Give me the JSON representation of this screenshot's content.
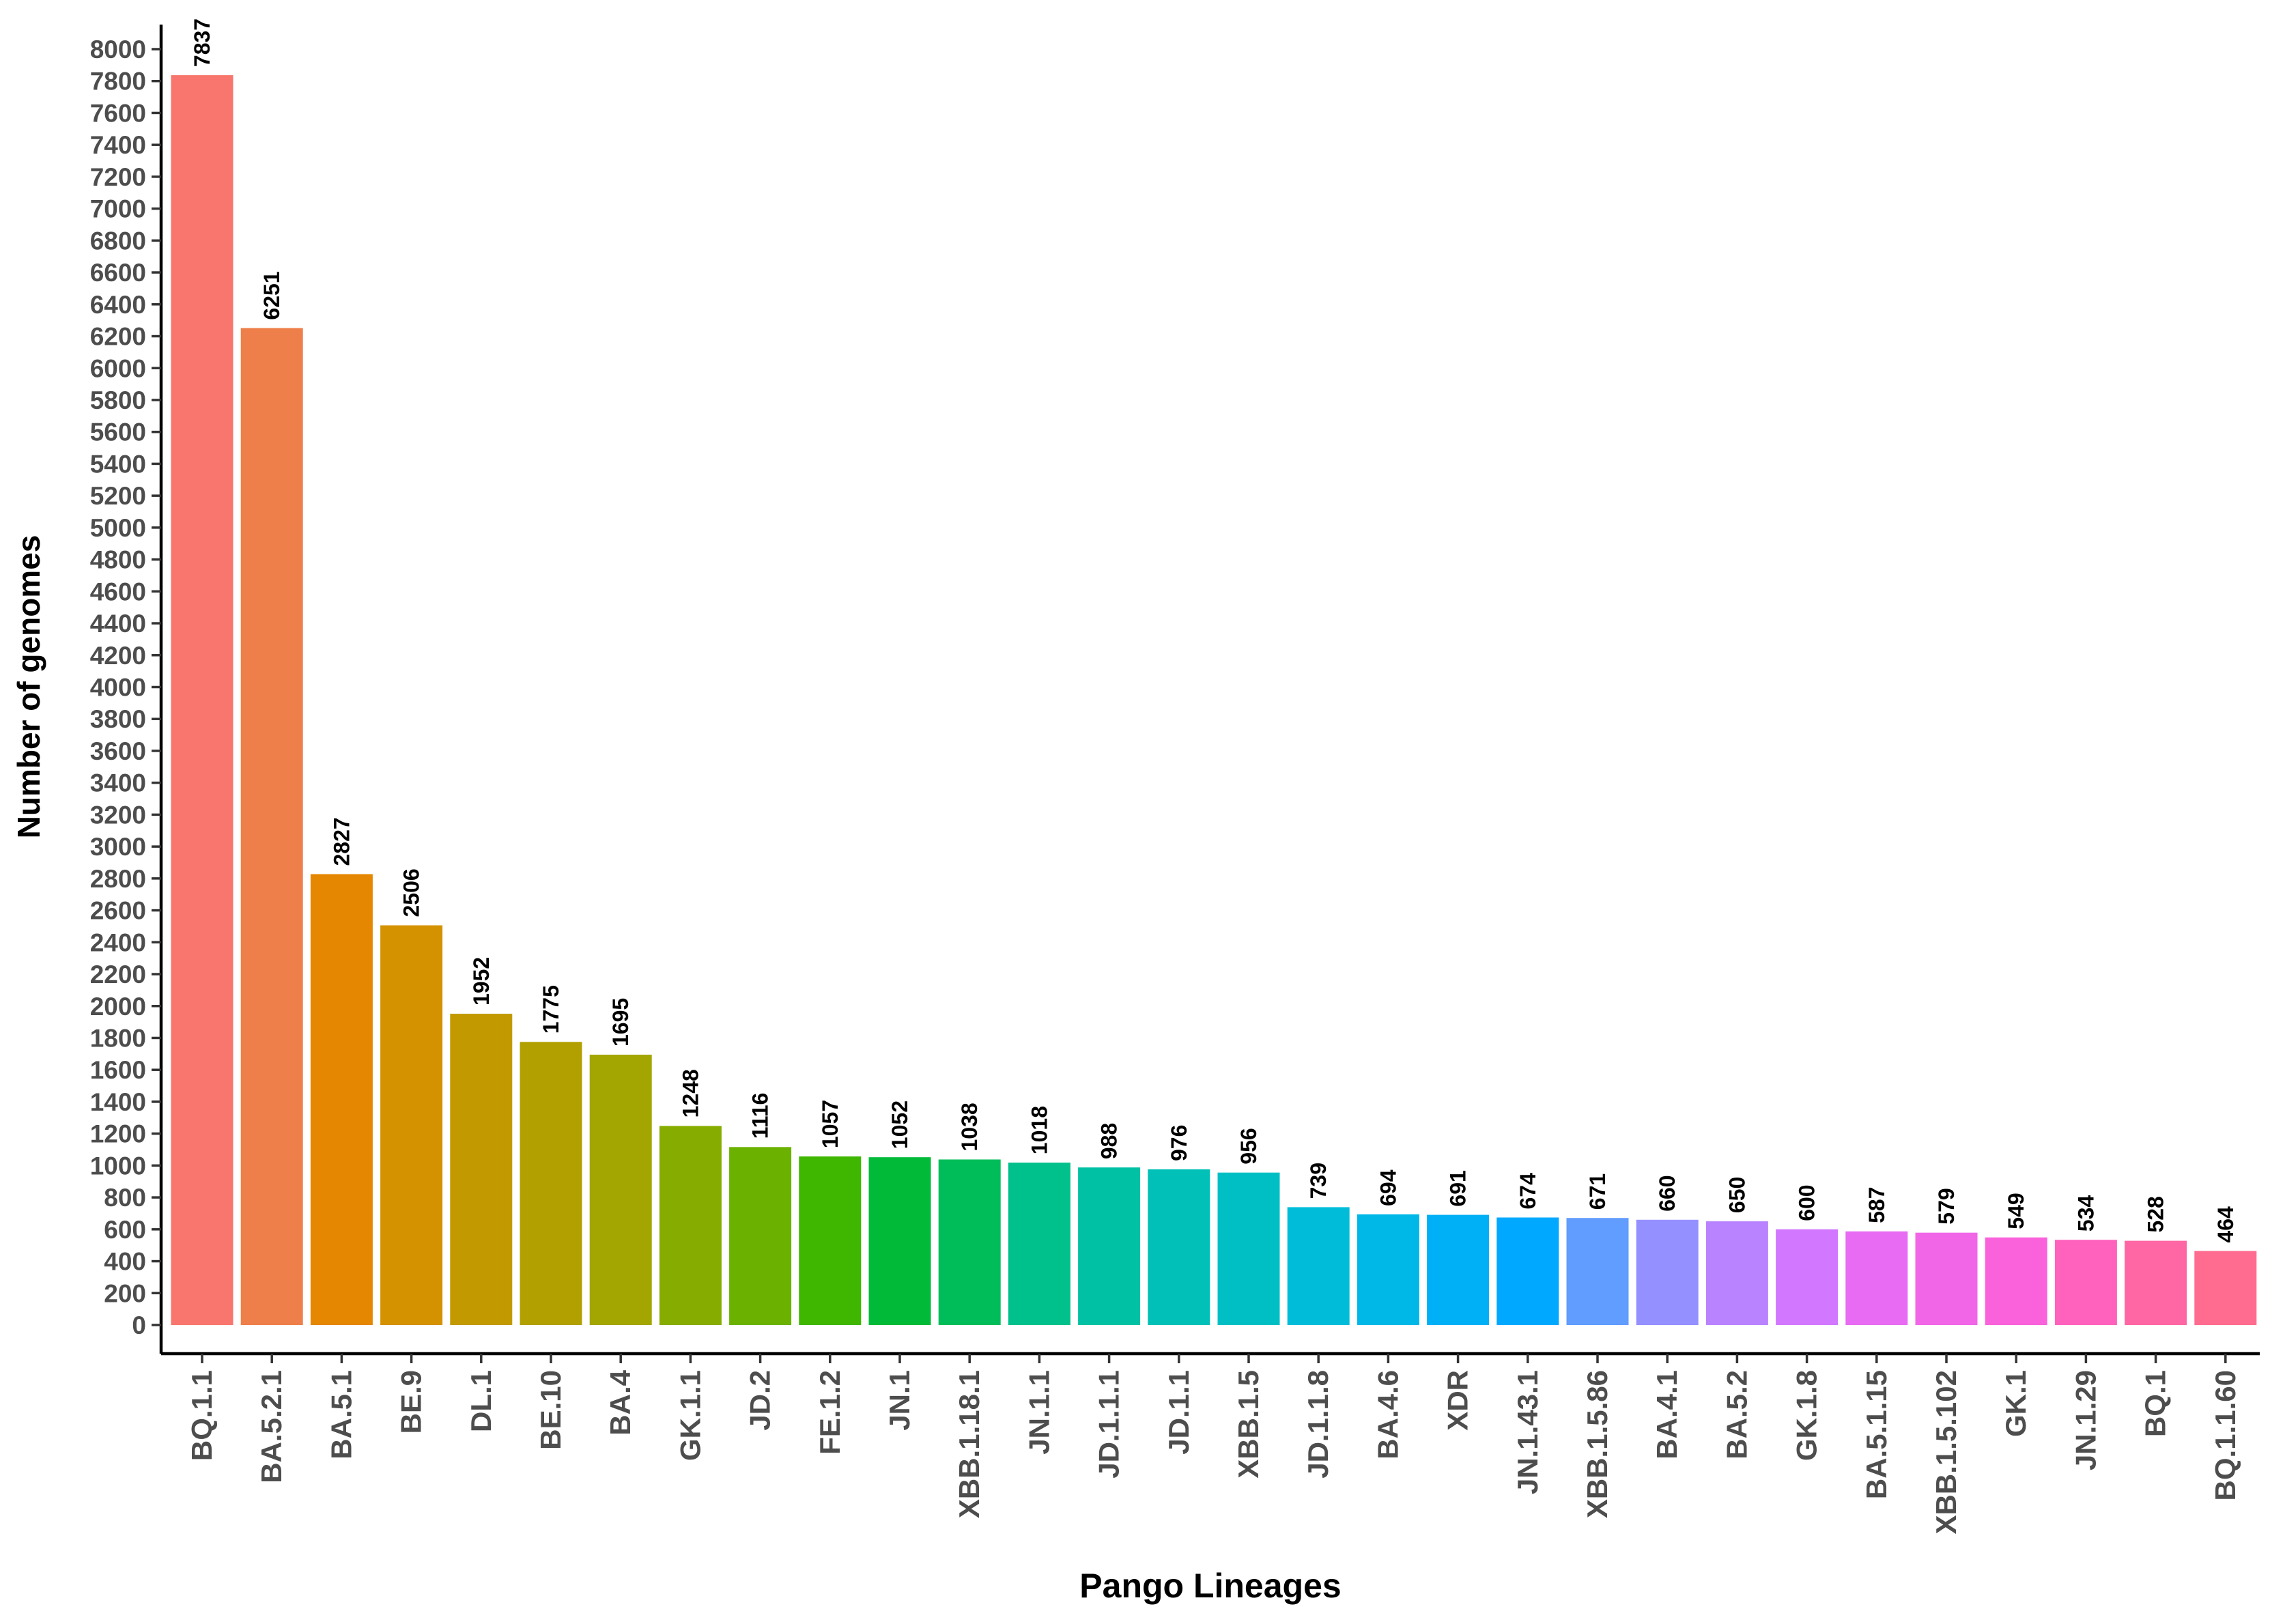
{
  "chart_data": {
    "type": "bar",
    "title": "",
    "xlabel": "Pango Lineages",
    "ylabel": "Number of genomes",
    "ylim": [
      0,
      8000
    ],
    "y_tick_step": 200,
    "grid": false,
    "legend": "none",
    "categories": [
      "BQ.1.1",
      "BA.5.2.1",
      "BA.5.1",
      "BE.9",
      "DL.1",
      "BE.10",
      "BA.4",
      "GK.1.1",
      "JD.2",
      "FE.1.2",
      "JN.1",
      "XBB.1.18.1",
      "JN.1.1",
      "JD.1.1.1",
      "JD.1.1",
      "XBB.1.5",
      "JD.1.1.8",
      "BA.4.6",
      "XDR",
      "JN.1.43.1",
      "XBB.1.5.86",
      "BA.4.1",
      "BA.5.2",
      "GK.1.8",
      "BA.5.1.15",
      "XBB.1.5.102",
      "GK.1",
      "JN.1.29",
      "BQ.1",
      "BQ.1.1.60"
    ],
    "values": [
      7837,
      6251,
      2827,
      2506,
      1952,
      1775,
      1695,
      1248,
      1116,
      1057,
      1052,
      1038,
      1018,
      988,
      976,
      956,
      739,
      694,
      691,
      674,
      671,
      660,
      650,
      600,
      587,
      579,
      549,
      534,
      528,
      464
    ],
    "colors": [
      "#F8766D",
      "#EE7F4A",
      "#E58700",
      "#D49200",
      "#C29A00",
      "#B2A000",
      "#A3A500",
      "#86AC00",
      "#6BB100",
      "#3FB600",
      "#00BA38",
      "#00BC59",
      "#00C08B",
      "#00C1A3",
      "#00C0B8",
      "#00BFC4",
      "#00BCD8",
      "#00B8E7",
      "#00B0F6",
      "#00A9FF",
      "#619CFF",
      "#9590FF",
      "#B983FF",
      "#D277FF",
      "#E76BF3",
      "#F066E6",
      "#FA62DB",
      "#FF62BC",
      "#FF67A4",
      "#FF6C8F"
    ]
  }
}
